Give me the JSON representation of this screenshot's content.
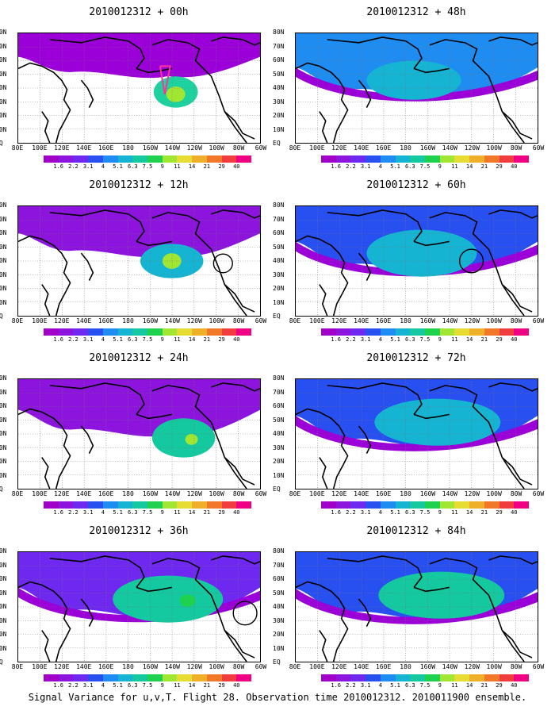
{
  "caption": "Signal Variance for u,v,T. Flight 28. Observation time 2010012312. 2010011900 ensemble.",
  "lat_labels": [
    "80N",
    "70N",
    "60N",
    "50N",
    "40N",
    "30N",
    "20N",
    "10N",
    "EQ"
  ],
  "lon_labels": [
    "80E",
    "100E",
    "120E",
    "140E",
    "160E",
    "180",
    "160W",
    "140W",
    "120W",
    "100W",
    "80W",
    "60W"
  ],
  "colorbar": {
    "labels": [
      "1.6",
      "2.2",
      "3.1",
      "4",
      "5.1",
      "6.3",
      "7.5",
      "9",
      "11",
      "14",
      "21",
      "29",
      "40"
    ],
    "colors": [
      "#a000c8",
      "#8c14dc",
      "#6e28f0",
      "#2850f0",
      "#1e8cf0",
      "#14b4d2",
      "#14c8a0",
      "#1ed250",
      "#a0e632",
      "#e6dc32",
      "#f0af28",
      "#f07828",
      "#f03c3c",
      "#f00082"
    ]
  },
  "panels": [
    {
      "title": "2010012312 + 00h",
      "lead": "00h"
    },
    {
      "title": "2010012312 + 48h",
      "lead": "48h"
    },
    {
      "title": "2010012312 + 12h",
      "lead": "12h"
    },
    {
      "title": "2010012312 + 60h",
      "lead": "60h"
    },
    {
      "title": "2010012312 + 24h",
      "lead": "24h"
    },
    {
      "title": "2010012312 + 72h",
      "lead": "72h"
    },
    {
      "title": "2010012312 + 36h",
      "lead": "36h"
    },
    {
      "title": "2010012312 + 84h",
      "lead": "84h"
    }
  ]
}
